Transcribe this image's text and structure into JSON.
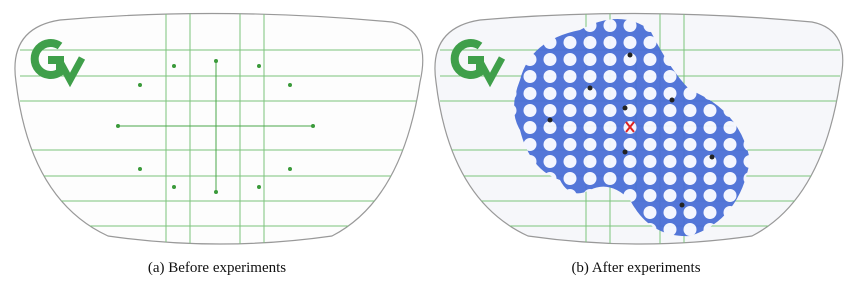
{
  "figure": {
    "panels": [
      {
        "caption": "(a) Before experiments"
      },
      {
        "caption": "(b) After experiments"
      }
    ]
  }
}
